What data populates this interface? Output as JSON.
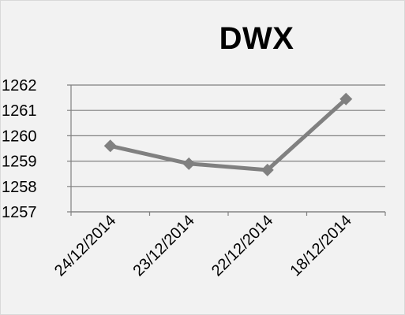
{
  "chart_data": {
    "type": "line",
    "title": "DWX",
    "categories": [
      "24/12/2014",
      "23/12/2014",
      "22/12/2014",
      "18/12/2014"
    ],
    "series": [
      {
        "values": [
          1259.6,
          1258.9,
          1258.65,
          1261.45
        ]
      }
    ],
    "ylim": [
      1257,
      1262
    ],
    "yticks": [
      1257,
      1258,
      1259,
      1260,
      1261,
      1262
    ],
    "grid": true,
    "legend": "none",
    "colors": {
      "series_line": "#808080",
      "gridline": "#808080",
      "background": "#f2f2f2"
    }
  }
}
